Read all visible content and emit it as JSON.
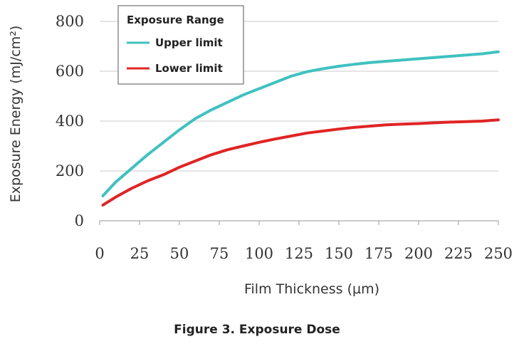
{
  "chart_data": {
    "type": "line",
    "xlabel": "Film Thickness (µm)",
    "ylabel": "Exposure Energy (mJ/cm²)",
    "xlim": [
      0,
      250
    ],
    "ylim": [
      0,
      800
    ],
    "xticks": [
      0,
      25,
      50,
      75,
      100,
      125,
      150,
      175,
      200,
      225,
      250
    ],
    "yticks": [
      0,
      200,
      400,
      600,
      800
    ],
    "grid": "horizontal",
    "legend": {
      "title": "Exposure Range",
      "placement": "top-left"
    },
    "series": [
      {
        "name": "Upper limit",
        "color": "#3fc1c0",
        "x": [
          2,
          10,
          20,
          30,
          40,
          50,
          60,
          70,
          80,
          90,
          100,
          110,
          120,
          130,
          140,
          150,
          160,
          170,
          180,
          190,
          200,
          210,
          220,
          230,
          240,
          250
        ],
        "y": [
          100,
          155,
          210,
          265,
          315,
          365,
          410,
          445,
          475,
          505,
          530,
          555,
          580,
          598,
          610,
          620,
          628,
          635,
          640,
          645,
          650,
          655,
          660,
          665,
          670,
          678
        ]
      },
      {
        "name": "Lower limit",
        "color": "#e02424",
        "x": [
          2,
          10,
          20,
          30,
          40,
          50,
          60,
          70,
          80,
          90,
          100,
          110,
          120,
          130,
          140,
          150,
          160,
          170,
          180,
          190,
          200,
          210,
          220,
          230,
          240,
          250
        ],
        "y": [
          63,
          95,
          130,
          160,
          185,
          215,
          240,
          265,
          285,
          300,
          315,
          328,
          340,
          352,
          360,
          368,
          375,
          380,
          385,
          388,
          390,
          393,
          396,
          398,
          400,
          405
        ]
      }
    ]
  },
  "caption": "Figure 3. Exposure Dose"
}
